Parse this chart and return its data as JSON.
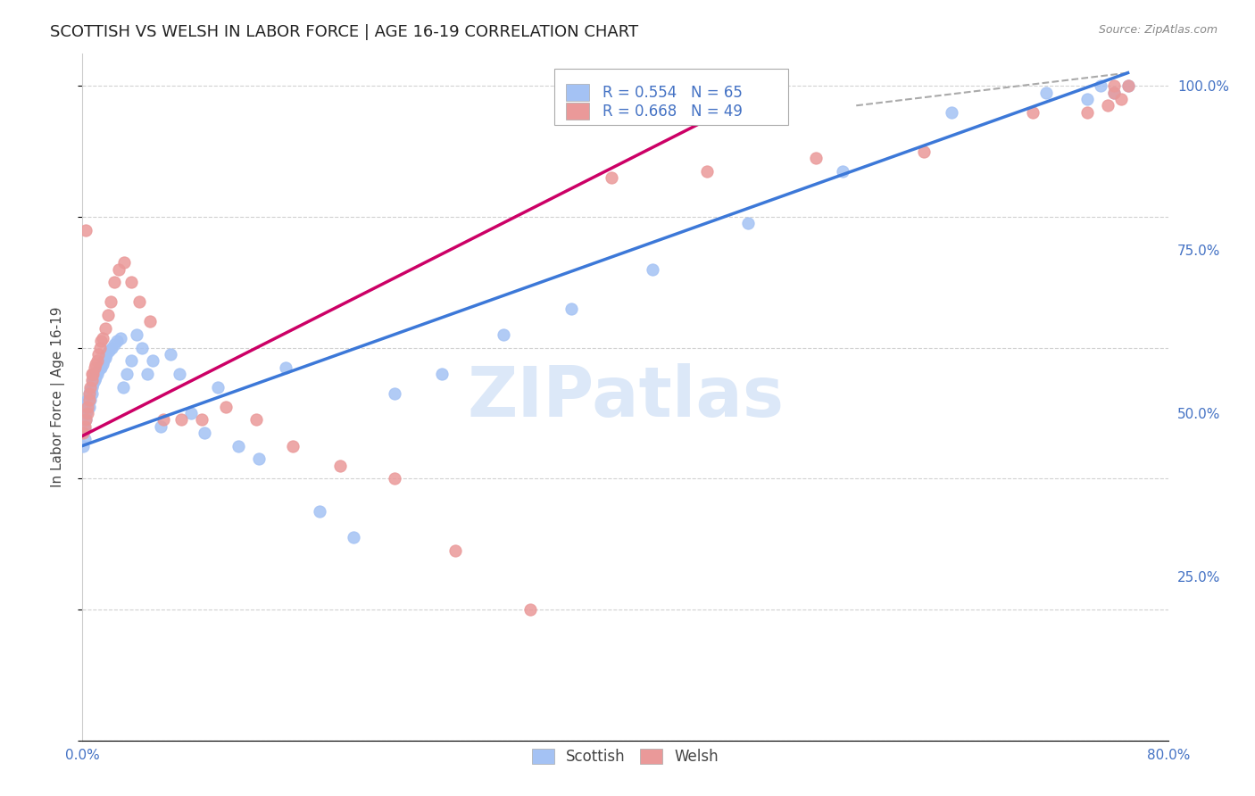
{
  "title": "SCOTTISH VS WELSH IN LABOR FORCE | AGE 16-19 CORRELATION CHART",
  "source": "Source: ZipAtlas.com",
  "ylabel": "In Labor Force | Age 16-19",
  "xlim": [
    0.0,
    0.8
  ],
  "ylim": [
    0.0,
    1.05
  ],
  "xticks": [
    0.0,
    0.1,
    0.2,
    0.3,
    0.4,
    0.5,
    0.6,
    0.7,
    0.8
  ],
  "xticklabels": [
    "0.0%",
    "",
    "",
    "",
    "",
    "",
    "",
    "",
    "80.0%"
  ],
  "yticks_right": [
    0.25,
    0.5,
    0.75,
    1.0
  ],
  "yticklabels_right": [
    "25.0%",
    "50.0%",
    "75.0%",
    "100.0%"
  ],
  "grid_color": "#cccccc",
  "background_color": "#ffffff",
  "watermark": "ZIPatlas",
  "legend_R_scottish": "R = 0.554",
  "legend_N_scottish": "N = 65",
  "legend_R_welsh": "R = 0.668",
  "legend_N_welsh": "N = 49",
  "scottish_color": "#a4c2f4",
  "welsh_color": "#ea9999",
  "scottish_line_color": "#3c78d8",
  "welsh_line_color": "#cc0066",
  "title_fontsize": 13,
  "axis_label_fontsize": 11,
  "tick_fontsize": 11,
  "tick_color": "#4472c4",
  "scottish_x": [
    0.001,
    0.002,
    0.002,
    0.003,
    0.003,
    0.003,
    0.004,
    0.004,
    0.004,
    0.005,
    0.005,
    0.005,
    0.006,
    0.006,
    0.007,
    0.007,
    0.008,
    0.008,
    0.009,
    0.01,
    0.01,
    0.011,
    0.012,
    0.013,
    0.014,
    0.015,
    0.016,
    0.017,
    0.018,
    0.02,
    0.022,
    0.024,
    0.026,
    0.028,
    0.03,
    0.033,
    0.036,
    0.04,
    0.044,
    0.048,
    0.052,
    0.058,
    0.065,
    0.072,
    0.08,
    0.09,
    0.1,
    0.115,
    0.13,
    0.15,
    0.175,
    0.2,
    0.23,
    0.265,
    0.31,
    0.36,
    0.42,
    0.49,
    0.56,
    0.64,
    0.71,
    0.74,
    0.75,
    0.76,
    0.77
  ],
  "scottish_y": [
    0.45,
    0.46,
    0.475,
    0.49,
    0.5,
    0.51,
    0.505,
    0.515,
    0.52,
    0.51,
    0.525,
    0.53,
    0.52,
    0.535,
    0.53,
    0.54,
    0.545,
    0.55,
    0.55,
    0.555,
    0.56,
    0.56,
    0.565,
    0.57,
    0.57,
    0.575,
    0.58,
    0.585,
    0.59,
    0.595,
    0.6,
    0.605,
    0.61,
    0.615,
    0.54,
    0.56,
    0.58,
    0.62,
    0.6,
    0.56,
    0.58,
    0.48,
    0.59,
    0.56,
    0.5,
    0.47,
    0.54,
    0.45,
    0.43,
    0.57,
    0.35,
    0.31,
    0.53,
    0.56,
    0.62,
    0.66,
    0.72,
    0.79,
    0.87,
    0.96,
    0.99,
    0.98,
    1.0,
    0.99,
    1.0
  ],
  "welsh_x": [
    0.001,
    0.002,
    0.003,
    0.003,
    0.004,
    0.004,
    0.005,
    0.005,
    0.006,
    0.007,
    0.007,
    0.008,
    0.009,
    0.01,
    0.011,
    0.012,
    0.013,
    0.014,
    0.015,
    0.017,
    0.019,
    0.021,
    0.024,
    0.027,
    0.031,
    0.036,
    0.042,
    0.05,
    0.06,
    0.073,
    0.088,
    0.106,
    0.128,
    0.155,
    0.19,
    0.23,
    0.275,
    0.33,
    0.39,
    0.46,
    0.54,
    0.62,
    0.7,
    0.74,
    0.755,
    0.76,
    0.76,
    0.765,
    0.77
  ],
  "welsh_y": [
    0.47,
    0.48,
    0.49,
    0.78,
    0.5,
    0.51,
    0.52,
    0.53,
    0.54,
    0.55,
    0.56,
    0.56,
    0.57,
    0.575,
    0.58,
    0.59,
    0.6,
    0.61,
    0.615,
    0.63,
    0.65,
    0.67,
    0.7,
    0.72,
    0.73,
    0.7,
    0.67,
    0.64,
    0.49,
    0.49,
    0.49,
    0.51,
    0.49,
    0.45,
    0.42,
    0.4,
    0.29,
    0.2,
    0.86,
    0.87,
    0.89,
    0.9,
    0.96,
    0.96,
    0.97,
    0.99,
    1.0,
    0.98,
    1.0
  ],
  "scottish_line_x": [
    0.0,
    0.77
  ],
  "scottish_line_y": [
    0.45,
    1.02
  ],
  "welsh_line_x": [
    0.0,
    0.5
  ],
  "welsh_line_y": [
    0.465,
    0.99
  ],
  "dashline_x": [
    0.57,
    0.77
  ],
  "dashline_y": [
    0.97,
    1.02
  ]
}
